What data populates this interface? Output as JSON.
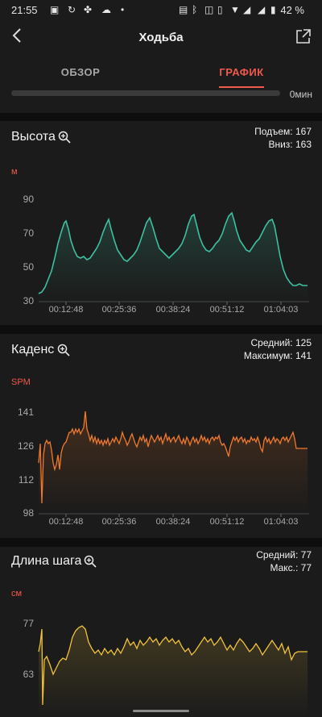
{
  "status_bar": {
    "time": "21:55",
    "battery": "42 %"
  },
  "header": {
    "title": "Ходьба"
  },
  "tabs": [
    {
      "label": "ОБЗОР"
    },
    {
      "label": "ГРАФИК"
    }
  ],
  "top_strip": {
    "value": "0мин"
  },
  "colors": {
    "accent": "#ef5a4b",
    "altitude": "#3fbfa0",
    "cadence": "#f07a2a",
    "stride": "#f2c33a"
  },
  "altitude": {
    "title": "Высота",
    "stat1": "Подъем: 167",
    "stat2": "Вниз: 163",
    "unit": "м",
    "yticks": [
      "90",
      "70",
      "50",
      "30"
    ],
    "xticks": [
      "00:12:48",
      "00:25:36",
      "00:38:24",
      "00:51:12",
      "01:04:03"
    ]
  },
  "cadence": {
    "title": "Каденс",
    "stat1": "Средний: 125",
    "stat2": "Максимум: 141",
    "unit": "SPM",
    "yticks": [
      "141",
      "126",
      "112",
      "98"
    ],
    "xticks": [
      "00:12:48",
      "00:25:36",
      "00:38:24",
      "00:51:12",
      "01:04:03"
    ]
  },
  "stride": {
    "title": "Длина шага",
    "stat1": "Средний: 77",
    "stat2": "Макс.: 77",
    "unit": "см",
    "yticks": [
      "77",
      "63"
    ]
  }
}
